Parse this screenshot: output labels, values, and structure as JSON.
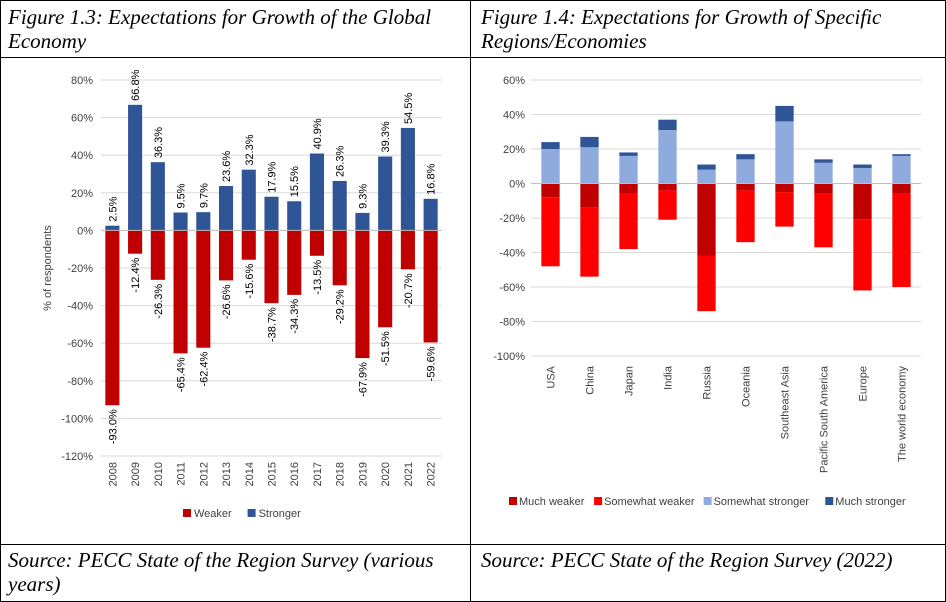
{
  "left_panel": {
    "title": "Figure 1.3: Expectations for Growth of the Global Economy",
    "source": "Source: PECC State of the Region Survey (various years)"
  },
  "right_panel": {
    "title": "Figure 1.4: Expectations for Growth of Specific Regions/Economies",
    "source": "Source: PECC State of the Region Survey (2022)"
  },
  "chart_data": [
    {
      "type": "bar",
      "stacked": true,
      "title": "",
      "xlabel": "",
      "ylabel": "% of respondents",
      "ylim": [
        -120,
        80
      ],
      "yticks": [
        "80%",
        "60%",
        "40%",
        "20%",
        "0%",
        "-20%",
        "-40%",
        "-60%",
        "-80%",
        "-100%",
        "-120%"
      ],
      "categories": [
        "2008",
        "2009",
        "2010",
        "2011",
        "2012",
        "2013",
        "2014",
        "2015",
        "2016",
        "2017",
        "2018",
        "2019",
        "2020",
        "2021",
        "2022"
      ],
      "series": [
        {
          "name": "Weaker",
          "color": "#c00000",
          "values": [
            -93.0,
            -12.4,
            -26.3,
            -65.4,
            -62.4,
            -26.6,
            -15.6,
            -38.7,
            -34.3,
            -13.5,
            -29.2,
            -67.9,
            -51.5,
            -20.7,
            -59.6
          ],
          "labels": [
            "-93.0%",
            "-12.4%",
            "-26.3%",
            "-65.4%",
            "-62.4%",
            "-26.6%",
            "-15.6%",
            "-38.7%",
            "-34.3%",
            "-13.5%",
            "-29.2%",
            "-67.9%",
            "-51.5%",
            "-20.7%",
            "-59.6%"
          ]
        },
        {
          "name": "Stronger",
          "color": "#2f5597",
          "values": [
            2.5,
            66.8,
            36.3,
            9.5,
            9.7,
            23.6,
            32.3,
            17.9,
            15.5,
            40.9,
            26.3,
            9.3,
            39.3,
            54.5,
            16.8
          ],
          "labels": [
            "2.5%",
            "66.8%",
            "36.3%",
            "9.5%",
            "9.7%",
            "23.6%",
            "32.3%",
            "17.9%",
            "15.5%",
            "40.9%",
            "26.3%",
            "9.3%",
            "39.3%",
            "54.5%",
            "16.8%"
          ]
        }
      ],
      "legend": "bottom",
      "grid": true
    },
    {
      "type": "bar",
      "stacked": true,
      "title": "",
      "xlabel": "",
      "ylabel": "",
      "ylim": [
        -100,
        60
      ],
      "yticks": [
        "60%",
        "40%",
        "20%",
        "0%",
        "-20%",
        "-40%",
        "-60%",
        "-80%",
        "-100%"
      ],
      "categories": [
        "USA",
        "China",
        "Japan",
        "India",
        "Russia",
        "Oceania",
        "Southeast Asia",
        "Pacific South America",
        "Europe",
        "The world economy"
      ],
      "series": [
        {
          "name": "Much weaker",
          "color": "#c00000",
          "values": [
            -8,
            -14,
            -6,
            -4,
            -42,
            -4,
            -5,
            -6,
            -21,
            -6
          ]
        },
        {
          "name": "Somewhat weaker",
          "color": "#ff0000",
          "values": [
            -40,
            -40,
            -32,
            -17,
            -32,
            -30,
            -20,
            -31,
            -41,
            -54
          ]
        },
        {
          "name": "Somewhat stronger",
          "color": "#8faadc",
          "values": [
            20,
            21,
            16,
            31,
            8,
            14,
            36,
            12,
            9,
            16
          ]
        },
        {
          "name": "Much stronger",
          "color": "#2f5597",
          "values": [
            4,
            6,
            2,
            6,
            3,
            3,
            9,
            2,
            2,
            1
          ]
        }
      ],
      "legend": "bottom",
      "grid": true
    }
  ]
}
